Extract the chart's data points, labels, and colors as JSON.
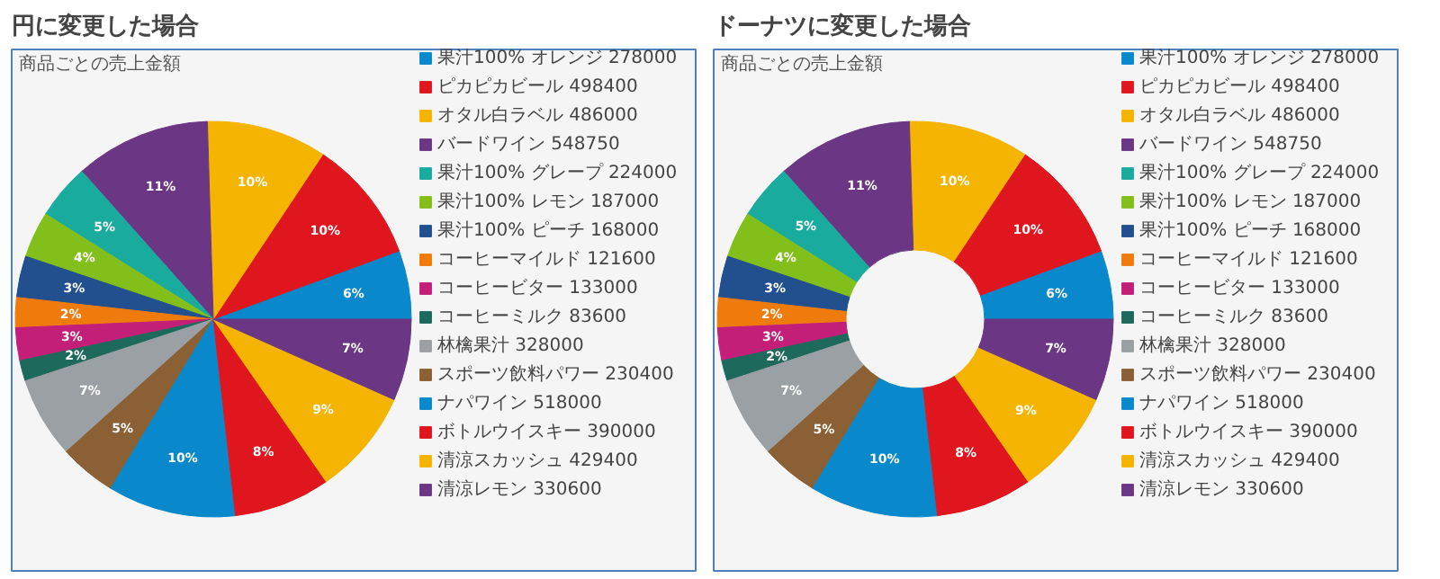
{
  "chart_data": [
    {
      "type": "pie",
      "title": "円に変更した場合",
      "subtitle": "商品ごとの売上金額",
      "legend": "right",
      "categories": [
        "果汁100% オレンジ 278000",
        "ピカピカビール 498400",
        "オタル白ラベル 486000",
        "バードワイン 548750",
        "果汁100% グレープ 224000",
        "果汁100% レモン 187000",
        "果汁100% ピーチ 168000",
        "コーヒーマイルド 121600",
        "コーヒービター 133000",
        "コーヒーミルク 83600",
        "林檎果汁 328000",
        "スポーツ飲料パワー 230400",
        "ナパワイン 518000",
        "ボトルウイスキー 390000",
        "清涼スカッシュ 429400",
        "清涼レモン 330600"
      ],
      "values": [
        5.61,
        10.06,
        9.81,
        11.08,
        4.52,
        3.77,
        3.39,
        2.45,
        2.68,
        1.69,
        6.62,
        4.65,
        10.46,
        7.87,
        8.67,
        6.67
      ],
      "value_labels": [
        "6%",
        "10%",
        "10%",
        "11%",
        "5%",
        "4%",
        "3%",
        "2%",
        "3%",
        "2%",
        "7%",
        "5%",
        "10%",
        "8%",
        "9%",
        "7%"
      ],
      "colors": [
        "#0a88cc",
        "#e0161f",
        "#f5b400",
        "#6b3784",
        "#1aab9f",
        "#83bf1a",
        "#22508f",
        "#ef7b0d",
        "#c31f79",
        "#1d6a5c",
        "#9aa0a3",
        "#8b6034",
        "#0a88cc",
        "#e0161f",
        "#f5b400",
        "#6b3784"
      ]
    },
    {
      "type": "donut",
      "title": "ドーナツに変更した場合",
      "subtitle": "商品ごとの売上金額",
      "legend": "right",
      "categories": [
        "果汁100% オレンジ 278000",
        "ピカピカビール 498400",
        "オタル白ラベル 486000",
        "バードワイン 548750",
        "果汁100% グレープ 224000",
        "果汁100% レモン 187000",
        "果汁100% ピーチ 168000",
        "コーヒーマイルド 121600",
        "コーヒービター 133000",
        "コーヒーミルク 83600",
        "林檎果汁 328000",
        "スポーツ飲料パワー 230400",
        "ナパワイン 518000",
        "ボトルウイスキー 390000",
        "清涼スカッシュ 429400",
        "清涼レモン 330600"
      ],
      "values": [
        5.61,
        10.06,
        9.81,
        11.08,
        4.52,
        3.77,
        3.39,
        2.45,
        2.68,
        1.69,
        6.62,
        4.65,
        10.46,
        7.87,
        8.67,
        6.67
      ],
      "value_labels": [
        "6%",
        "10%",
        "10%",
        "11%",
        "5%",
        "4%",
        "3%",
        "2%",
        "3%",
        "2%",
        "7%",
        "5%",
        "10%",
        "8%",
        "9%",
        "7%"
      ],
      "colors": [
        "#0a88cc",
        "#e0161f",
        "#f5b400",
        "#6b3784",
        "#1aab9f",
        "#83bf1a",
        "#22508f",
        "#ef7b0d",
        "#c31f79",
        "#1d6a5c",
        "#9aa0a3",
        "#8b6034",
        "#0a88cc",
        "#e0161f",
        "#f5b400",
        "#6b3784"
      ]
    }
  ]
}
